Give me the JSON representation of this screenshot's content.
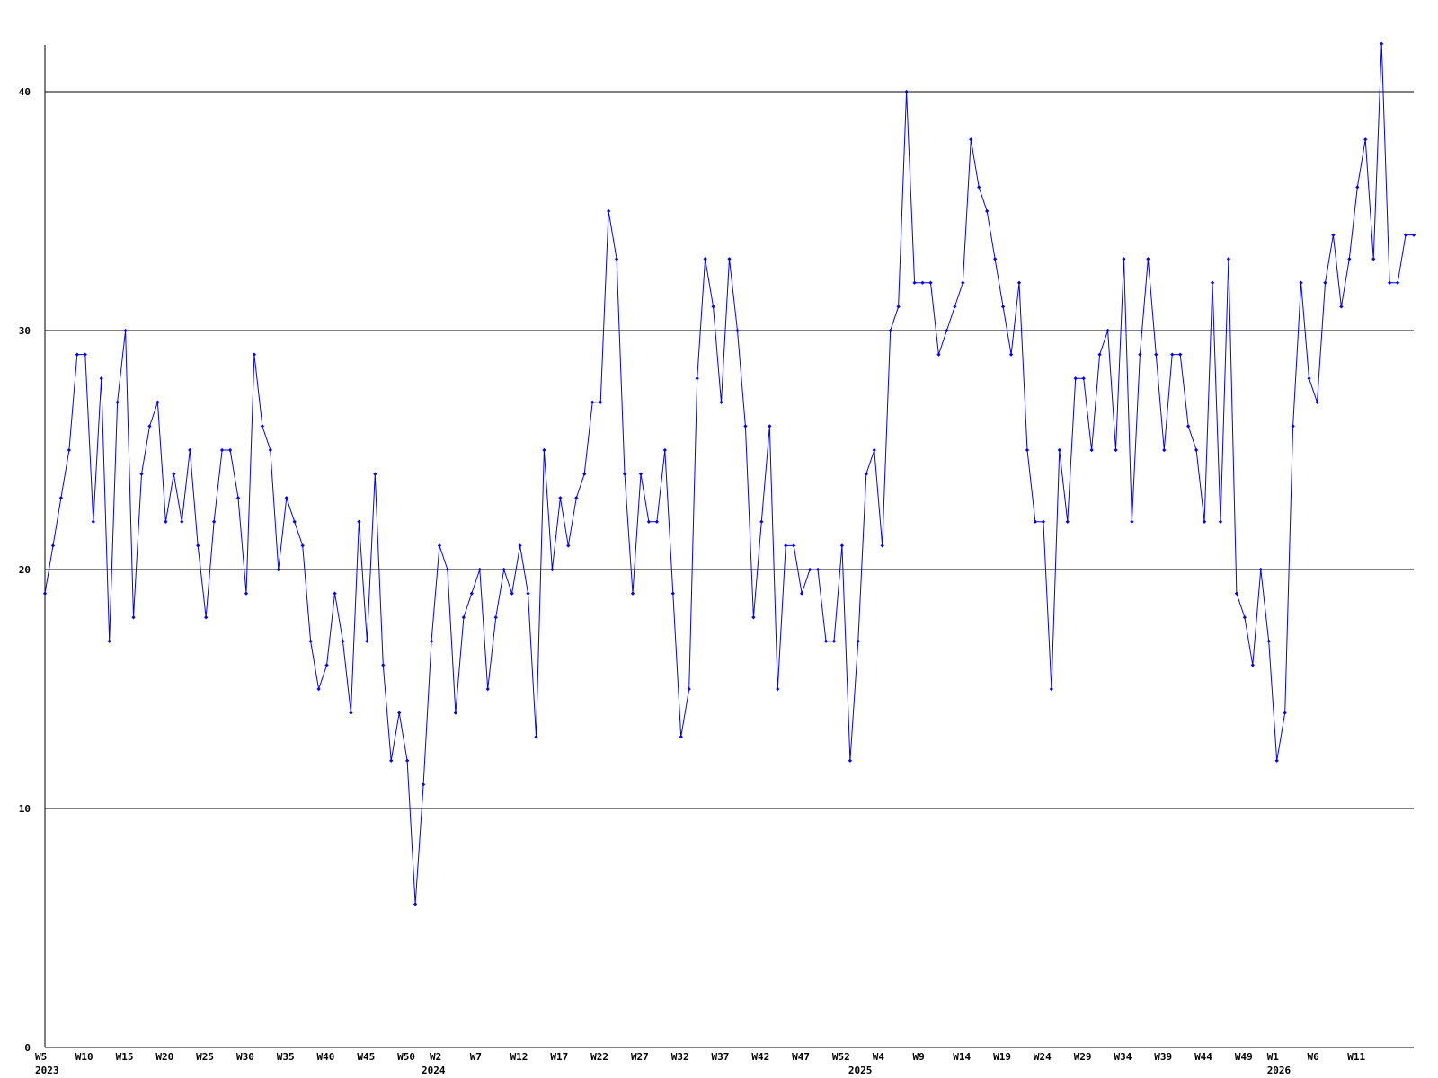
{
  "chart_data": {
    "type": "line",
    "title": "",
    "xlabel": "",
    "ylabel": "",
    "ylim": [
      0,
      42
    ],
    "y_ticks": [
      0,
      10,
      20,
      30,
      40
    ],
    "grid": "horizontal",
    "legend": "none",
    "x_tick_labels": [
      {
        "week": 0,
        "label": "W5"
      },
      {
        "week": 5,
        "label": "W10"
      },
      {
        "week": 10,
        "label": "W15"
      },
      {
        "week": 15,
        "label": "W20"
      },
      {
        "week": 20,
        "label": "W25"
      },
      {
        "week": 25,
        "label": "W30"
      },
      {
        "week": 30,
        "label": "W35"
      },
      {
        "week": 35,
        "label": "W40"
      },
      {
        "week": 40,
        "label": "W45"
      },
      {
        "week": 45,
        "label": "W50"
      },
      {
        "week": 49,
        "label": "W2"
      },
      {
        "week": 54,
        "label": "W7"
      },
      {
        "week": 59,
        "label": "W12"
      },
      {
        "week": 64,
        "label": "W17"
      },
      {
        "week": 69,
        "label": "W22"
      },
      {
        "week": 74,
        "label": "W27"
      },
      {
        "week": 79,
        "label": "W32"
      },
      {
        "week": 84,
        "label": "W37"
      },
      {
        "week": 89,
        "label": "W42"
      },
      {
        "week": 94,
        "label": "W47"
      },
      {
        "week": 99,
        "label": "W52"
      },
      {
        "week": 104,
        "label": "W4"
      },
      {
        "week": 109,
        "label": "W9"
      },
      {
        "week": 114,
        "label": "W14"
      },
      {
        "week": 119,
        "label": "W19"
      },
      {
        "week": 124,
        "label": "W24"
      },
      {
        "week": 129,
        "label": "W29"
      },
      {
        "week": 134,
        "label": "W34"
      },
      {
        "week": 139,
        "label": "W39"
      },
      {
        "week": 144,
        "label": "W44"
      },
      {
        "week": 149,
        "label": "W49"
      },
      {
        "week": 153,
        "label": "W1"
      },
      {
        "week": 158,
        "label": "W6"
      },
      {
        "week": 163,
        "label": "W11"
      }
    ],
    "year_labels": [
      {
        "week": 0,
        "label": "2023"
      },
      {
        "week": 48,
        "label": "2024"
      },
      {
        "week": 101,
        "label": "2025"
      },
      {
        "week": 153,
        "label": "2026"
      }
    ],
    "x_max": 170,
    "series": [
      {
        "color": "#0000ff",
        "values": [
          19,
          21,
          23,
          25,
          29,
          29,
          22,
          28,
          17,
          27,
          30,
          18,
          24,
          26,
          27,
          22,
          24,
          22,
          25,
          21,
          18,
          22,
          25,
          25,
          23,
          19,
          29,
          26,
          25,
          20,
          23,
          22,
          21,
          17,
          15,
          16,
          19,
          17,
          14,
          22,
          17,
          24,
          16,
          12,
          14,
          12,
          6,
          11,
          17,
          21,
          20,
          14,
          18,
          19,
          20,
          15,
          18,
          20,
          19,
          21,
          19,
          13,
          25,
          20,
          23,
          21,
          23,
          24,
          27,
          27,
          35,
          33,
          24,
          19,
          24,
          22,
          22,
          25,
          19,
          13,
          15,
          28,
          33,
          31,
          27,
          33,
          30,
          26,
          18,
          22,
          26,
          15,
          21,
          21,
          19,
          20,
          20,
          17,
          17,
          21,
          12,
          17,
          24,
          25,
          21,
          30,
          31,
          40,
          32,
          32,
          32,
          29,
          30,
          31,
          32,
          38,
          36,
          35,
          33,
          31,
          29,
          32,
          25,
          22,
          22,
          15,
          25,
          22,
          28,
          28,
          25,
          29,
          30,
          25,
          33,
          22,
          29,
          33,
          29,
          25,
          29,
          29,
          26,
          25,
          22,
          32,
          22,
          33,
          19,
          18,
          16,
          20,
          17,
          12,
          14,
          26,
          32,
          28,
          27,
          32,
          34,
          31,
          33,
          36,
          38,
          33,
          42,
          32,
          32,
          34,
          34
        ]
      }
    ]
  }
}
